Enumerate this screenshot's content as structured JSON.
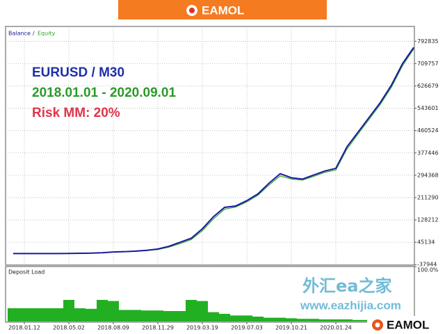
{
  "header": {
    "logo": "EAMOL"
  },
  "watermark": {
    "title": "外汇ea之家",
    "url": "www.eazhijia.com"
  },
  "footer_logo": "EAMOL",
  "chart_data": {
    "type": "line",
    "annotations": [
      {
        "text": "EURUSD / M30",
        "color": "#1f2fa8"
      },
      {
        "text": "2018.01.01 - 2020.09.01",
        "color": "#2a9a2a"
      },
      {
        "text": "Risk MM: 20%",
        "color": "#e0344a"
      }
    ],
    "legend_separator": "/",
    "categories": [
      null,
      "2018.01.12",
      null,
      null,
      null,
      "2018.05.02",
      null,
      null,
      null,
      "2018.08.09",
      null,
      null,
      null,
      "2018.11.29",
      null,
      null,
      null,
      "2019.03.19",
      null,
      null,
      null,
      "2019.07.03",
      null,
      null,
      null,
      "2019.10.21",
      null,
      null,
      null,
      "2020.01.24",
      null,
      null,
      null,
      null,
      null,
      null,
      null
    ],
    "series": [
      {
        "name": "Balance",
        "color": "#1a1a9c",
        "values": [
          3000,
          3000,
          3000,
          3000,
          3000,
          3500,
          4000,
          4500,
          6000,
          9000,
          10000,
          12000,
          15000,
          20000,
          30000,
          45000,
          60000,
          95000,
          140000,
          175000,
          180000,
          200000,
          225000,
          265000,
          300000,
          285000,
          280000,
          295000,
          310000,
          320000,
          400000,
          455000,
          510000,
          565000,
          630000,
          710000,
          770000
        ]
      },
      {
        "name": "Equity",
        "color": "#2ea02e",
        "values": [
          3000,
          3000,
          3000,
          3000,
          3000,
          3400,
          3900,
          4400,
          5800,
          8500,
          9500,
          11000,
          14000,
          18000,
          27000,
          40000,
          55000,
          88000,
          132000,
          168000,
          176000,
          195000,
          220000,
          258000,
          292000,
          280000,
          276000,
          290000,
          305000,
          314000,
          392000,
          448000,
          503000,
          558000,
          622000,
          702000,
          764000
        ]
      }
    ],
    "ylim": [
      -40000,
      848000
    ],
    "yticks": [
      792835,
      709757,
      626679,
      543601,
      460524,
      377446,
      294368,
      211290,
      128212,
      45134,
      -37944
    ],
    "grid": true,
    "load_panel": {
      "type": "bar",
      "title": "Deposit Load",
      "color": "#22b022",
      "values": [
        25,
        25,
        25,
        25,
        25,
        40,
        25,
        24,
        40,
        38,
        22,
        22,
        21,
        21,
        20,
        20,
        40,
        38,
        18,
        15,
        12,
        12,
        10,
        8,
        8,
        7,
        6,
        6,
        5,
        5,
        5,
        4,
        4,
        4,
        3,
        3,
        3
      ],
      "ylim": [
        0,
        100
      ],
      "yticks": [
        {
          "value": 100,
          "label": "100.0%"
        }
      ]
    }
  }
}
